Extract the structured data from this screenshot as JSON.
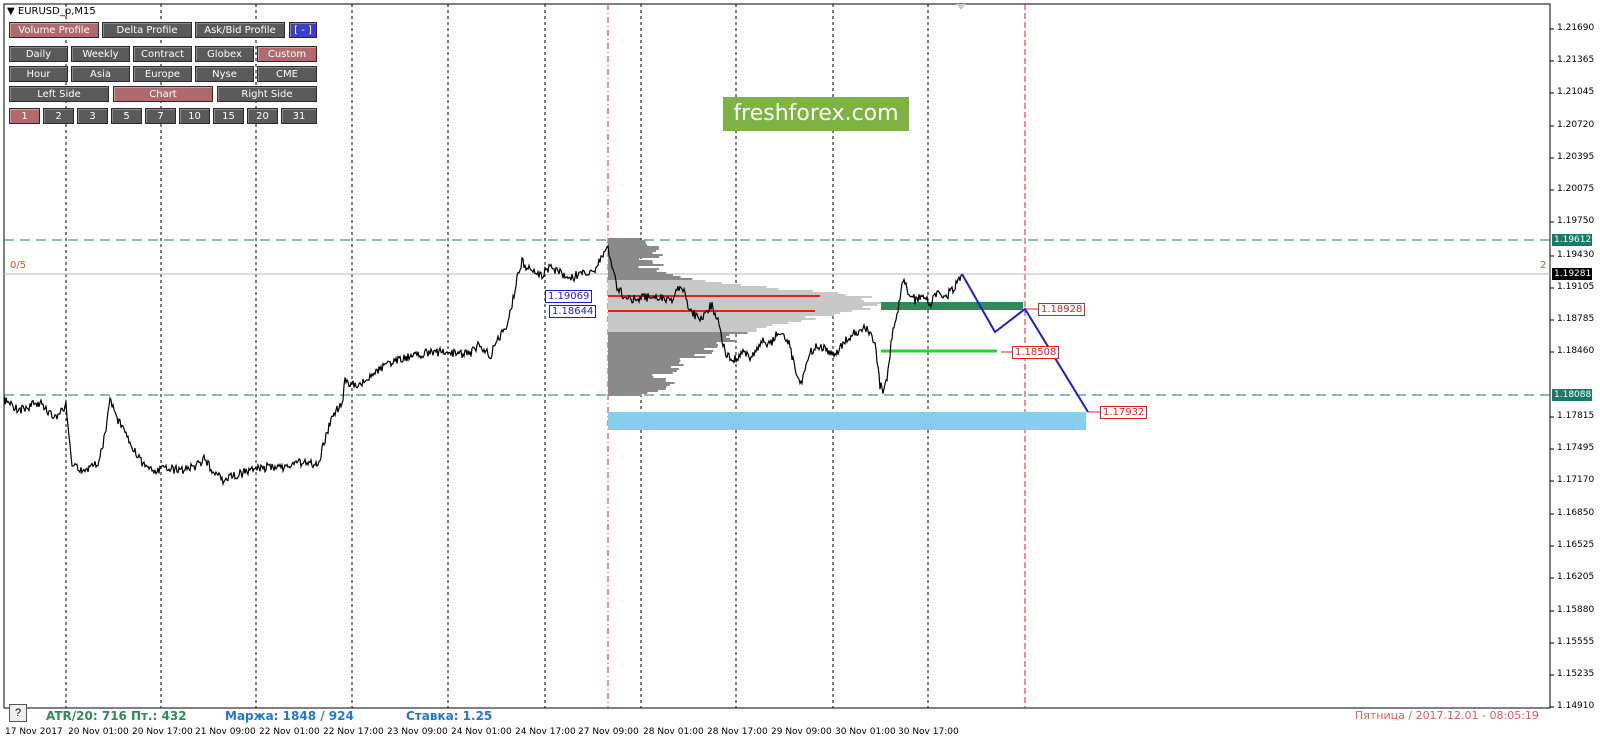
{
  "window": {
    "symbol_title": "EURUSD_p,M15"
  },
  "panel": {
    "row1": [
      {
        "label": "Volume Profile",
        "active": true
      },
      {
        "label": "Delta Profile",
        "active": false
      },
      {
        "label": "Ask/Bid Profile",
        "active": false
      },
      {
        "label": "[ - ]",
        "active": false,
        "style": "blue"
      }
    ],
    "row2": [
      {
        "label": "Daily",
        "active": false
      },
      {
        "label": "Weekly",
        "active": false
      },
      {
        "label": "Contract",
        "active": false
      },
      {
        "label": "Globex",
        "active": false
      },
      {
        "label": "Custom",
        "active": true
      }
    ],
    "row3": [
      {
        "label": "Hour",
        "active": false
      },
      {
        "label": "Asia",
        "active": false
      },
      {
        "label": "Europe",
        "active": false
      },
      {
        "label": "Nyse",
        "active": false
      },
      {
        "label": "CME",
        "active": false
      }
    ],
    "row4": [
      {
        "label": "Left Side",
        "active": false
      },
      {
        "label": "Chart",
        "active": true
      },
      {
        "label": "Right Side",
        "active": false
      }
    ],
    "row5": [
      {
        "label": "1",
        "active": true
      },
      {
        "label": "2",
        "active": false
      },
      {
        "label": "3",
        "active": false
      },
      {
        "label": "5",
        "active": false
      },
      {
        "label": "7",
        "active": false
      },
      {
        "label": "10",
        "active": false
      },
      {
        "label": "15",
        "active": false
      },
      {
        "label": "20",
        "active": false
      },
      {
        "label": "31",
        "active": false
      }
    ]
  },
  "logo_text": "freshforex.com",
  "left_marker": "0/5",
  "right_marker": "2",
  "price_tags": {
    "poc_upper": "1.19069",
    "poc_lower": "1.18644",
    "target_1": "1.18928",
    "target_2": "1.18508",
    "target_3": "1.17932"
  },
  "axis": {
    "price_labels": [
      "1.21690",
      "1.21365",
      "1.21045",
      "1.20720",
      "1.20395",
      "1.20075",
      "1.19750",
      "1.19430",
      "1.19105",
      "1.18785",
      "1.18460",
      "1.17815",
      "1.17495",
      "1.17170",
      "1.16850",
      "1.16525",
      "1.16205",
      "1.15880",
      "1.15555",
      "1.15235",
      "1.14910"
    ],
    "highlight_upper": "1.19612",
    "highlight_current": "1.19281",
    "highlight_lower": "1.18088",
    "time_labels": [
      "17 Nov 2017",
      "20 Nov 01:00",
      "20 Nov 17:00",
      "21 Nov 09:00",
      "22 Nov 01:00",
      "22 Nov 17:00",
      "23 Nov 09:00",
      "24 Nov 01:00",
      "24 Nov 17:00",
      "27 Nov 09:00",
      "28 Nov 01:00",
      "28 Nov 17:00",
      "29 Nov 09:00",
      "30 Nov 01:00",
      "30 Nov 17:00"
    ]
  },
  "status": {
    "help": "?",
    "atr": "ATR/20: 716",
    "pt": "Пт.: 432",
    "margin": "Маржа: 1848 / 924",
    "rate": "Ставка: 1.25",
    "datetime": "Пятница  /  2017.12.01  -  08:05:19"
  },
  "colors": {
    "active_button": "#b06a6e",
    "inactive_button": "#5a5a5a",
    "logo_bg": "#7cb342",
    "dashed_level": "#1a7a6a",
    "price_line": "#000000",
    "forecast_line": "#1e1ed0",
    "session_line": "#e02020",
    "target_zone": "#87ceeb",
    "level_dark_green": "#2e8b57",
    "level_light_green": "#33cc33"
  }
}
